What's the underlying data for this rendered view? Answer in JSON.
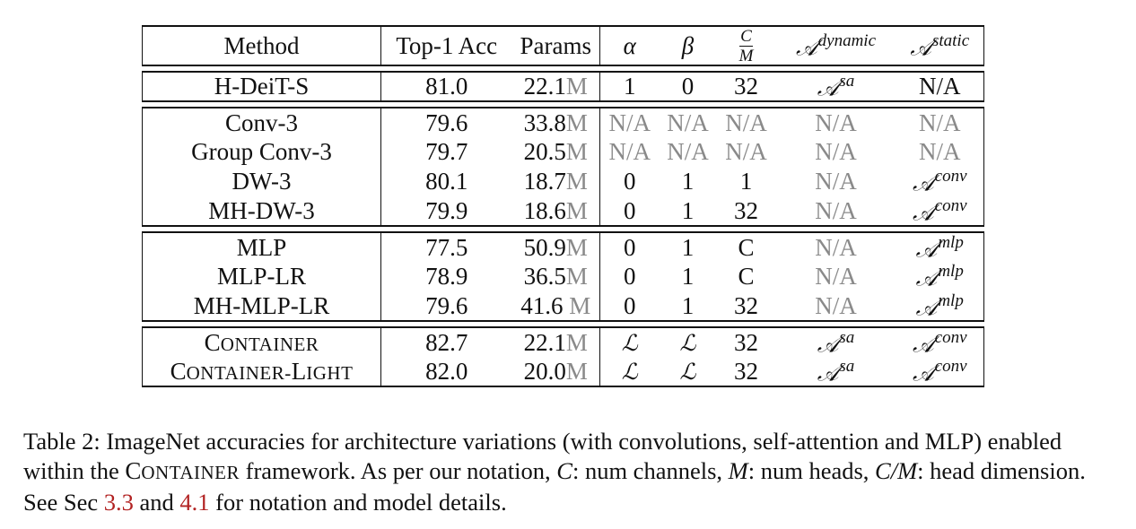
{
  "table": {
    "headers": {
      "method": "Method",
      "top1": "Top-1 Acc",
      "params": "Params",
      "alpha": "α",
      "beta": "β",
      "cm_num": "C",
      "cm_den": "M",
      "a_dynamic_base": "𝒜",
      "a_dynamic_sup": "dynamic",
      "a_static_base": "𝒜",
      "a_static_sup": "static"
    },
    "unit": "M",
    "groups": [
      {
        "rows": [
          {
            "method": "H-DeiT-S",
            "top1": "81.0",
            "params": "22.1",
            "alpha": "1",
            "beta": "0",
            "cm": "32",
            "dyn": "𝒜",
            "dyn_sup": "sa",
            "stat": "N/A",
            "stat_sup": ""
          }
        ]
      },
      {
        "rows": [
          {
            "method": "Conv-3",
            "top1": "79.6",
            "params": "33.8",
            "alpha": "N/A",
            "beta": "N/A",
            "cm": "N/A",
            "dyn": "N/A",
            "dyn_sup": "",
            "stat": "N/A",
            "stat_sup": ""
          },
          {
            "method": "Group Conv-3",
            "top1": "79.7",
            "params": "20.5",
            "alpha": "N/A",
            "beta": "N/A",
            "cm": "N/A",
            "dyn": "N/A",
            "dyn_sup": "",
            "stat": "N/A",
            "stat_sup": ""
          },
          {
            "method": "DW-3",
            "top1": "80.1",
            "params": "18.7",
            "alpha": "0",
            "beta": "1",
            "cm": "1",
            "dyn": "N/A",
            "dyn_sup": "",
            "stat": "𝒜",
            "stat_sup": "conv"
          },
          {
            "method": "MH-DW-3",
            "top1": "79.9",
            "params": "18.6",
            "alpha": "0",
            "beta": "1",
            "cm": "32",
            "dyn": "N/A",
            "dyn_sup": "",
            "stat": "𝒜",
            "stat_sup": "conv"
          }
        ]
      },
      {
        "rows": [
          {
            "method": "MLP",
            "top1": "77.5",
            "params": "50.9",
            "alpha": "0",
            "beta": "1",
            "cm": "C",
            "dyn": "N/A",
            "dyn_sup": "",
            "stat": "𝒜",
            "stat_sup": "mlp"
          },
          {
            "method": "MLP-LR",
            "top1": "78.9",
            "params": "36.5",
            "alpha": "0",
            "beta": "1",
            "cm": "C",
            "dyn": "N/A",
            "dyn_sup": "",
            "stat": "𝒜",
            "stat_sup": "mlp"
          },
          {
            "method": "MH-MLP-LR",
            "top1": "79.6",
            "params": "41.6 ",
            "alpha": "0",
            "beta": "1",
            "cm": "32",
            "dyn": "N/A",
            "dyn_sup": "",
            "stat": "𝒜",
            "stat_sup": "mlp"
          }
        ]
      },
      {
        "rows": [
          {
            "method_big": "C",
            "method_small": "ONTAINER",
            "method_big2": "",
            "method_small2": "",
            "top1": "82.7",
            "params": "22.1",
            "alpha": "ℒ",
            "beta": "ℒ",
            "cm": "32",
            "dyn": "𝒜",
            "dyn_sup": "sa",
            "stat": "𝒜",
            "stat_sup": "conv"
          },
          {
            "method_big": "C",
            "method_small": "ONTAINER-",
            "method_big2": "L",
            "method_small2": "IGHT",
            "top1": "82.0",
            "params": "20.0",
            "alpha": "ℒ",
            "beta": "ℒ",
            "cm": "32",
            "dyn": "𝒜",
            "dyn_sup": "sa",
            "stat": "𝒜",
            "stat_sup": "conv"
          }
        ]
      }
    ]
  },
  "caption": {
    "p1": "Table 2: ImageNet accuracies for architecture variations (with convolutions, self-attention and MLP) enabled within the ",
    "sc_big": "C",
    "sc_small": "ONTAINER",
    "p2": " framework. As per our notation, ",
    "c": "C",
    "p3": ": num channels, ",
    "m": "M",
    "p4": ": num heads, ",
    "cm": "C/M",
    "p5": ": head dimension. See Sec ",
    "ref1": "3.3",
    "p6": " and  ",
    "ref2": "4.1",
    "p7": " for notation and model details."
  },
  "colors": {
    "text": "#111111",
    "gray": "#8a8a8a",
    "ref": "#b22222"
  }
}
